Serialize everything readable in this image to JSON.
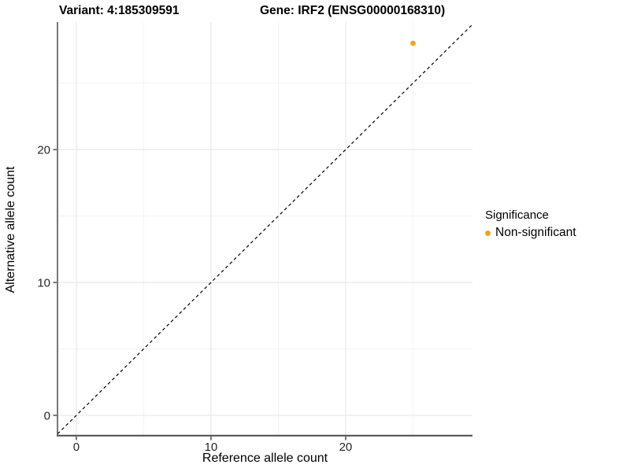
{
  "titles": {
    "variant": "Variant: 4:185309591",
    "gene": "Gene: IRF2 (ENSG00000168310)"
  },
  "chart_data": {
    "type": "scatter",
    "title": "Variant: 4:185309591   Gene: IRF2 (ENSG00000168310)",
    "xlabel": "Reference allele count",
    "ylabel": "Alternative allele count",
    "series": [
      {
        "name": "Non-significant",
        "color": "#FAA21C",
        "points": [
          {
            "x": 25,
            "y": 28
          }
        ]
      }
    ],
    "identity_line": {
      "type": "y=x",
      "style": "dashed",
      "color": "#000000"
    },
    "xlim": [
      -1.4,
      29.42
    ],
    "ylim": [
      -1.48,
      29.6
    ],
    "x_ticks": [
      0,
      10,
      20
    ],
    "y_ticks": [
      0,
      10,
      20
    ],
    "x_minor_ticks": [
      5,
      15,
      25
    ],
    "y_minor_ticks": [
      5,
      15,
      25
    ],
    "grid": "on",
    "grid_major_color": "#e6e6e6",
    "grid_minor_color": "#f2f2f2",
    "axis_line_color": "#4a4a4a",
    "tick_label_color": "#262626",
    "legend": {
      "position": "right",
      "title": "Significance",
      "items": [
        {
          "label": "Non-significant",
          "color": "#FAA21C"
        }
      ]
    }
  }
}
